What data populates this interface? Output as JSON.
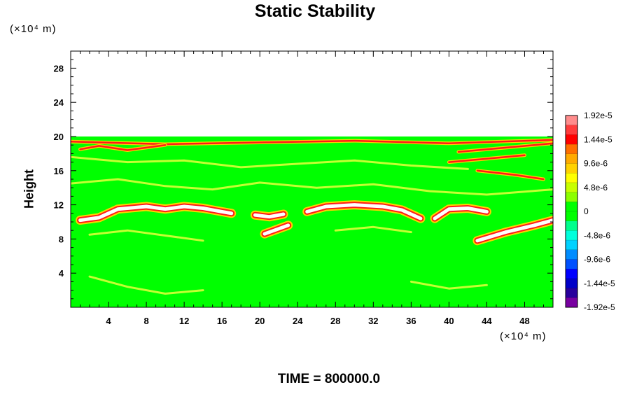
{
  "chart_data": {
    "type": "heatmap",
    "title": "Static Stability",
    "ylabel": "Height",
    "xlabel": "",
    "x_unit_label": "(×10⁴ m)",
    "y_unit_label": "(×10⁴ m)",
    "xlim": [
      0,
      51
    ],
    "ylim": [
      0,
      30
    ],
    "x_ticks": [
      "4",
      "8",
      "12",
      "16",
      "20",
      "24",
      "28",
      "32",
      "36",
      "40",
      "44",
      "48"
    ],
    "x_tick_values": [
      4,
      8,
      12,
      16,
      20,
      24,
      28,
      32,
      36,
      40,
      44,
      48
    ],
    "y_ticks": [
      "4",
      "8",
      "12",
      "16",
      "20",
      "24",
      "28"
    ],
    "y_tick_values": [
      4,
      8,
      12,
      16,
      20,
      24,
      28
    ],
    "field_top": 20,
    "colorbar": {
      "labels": [
        "1.92e-5",
        "1.44e-5",
        "9.6e-6",
        "4.8e-6",
        "0",
        "-4.8e-6",
        "-9.6e-6",
        "-1.44e-5",
        "-1.92e-5"
      ],
      "values": [
        1.92e-05,
        1.44e-05,
        9.6e-06,
        4.8e-06,
        0,
        -4.8e-06,
        -9.6e-06,
        -1.44e-05,
        -1.92e-05
      ],
      "colors": [
        "#ff8c8c",
        "#ff3c3c",
        "#ff0000",
        "#ff6e00",
        "#ffaa00",
        "#ffd200",
        "#ffff00",
        "#c8ff00",
        "#8cff00",
        "#00ff00",
        "#00ff00",
        "#00ff8c",
        "#00ffdc",
        "#00d2ff",
        "#008cff",
        "#0050ff",
        "#0000ff",
        "#0000c8",
        "#28009c",
        "#7800a0"
      ]
    },
    "features": [
      {
        "kind": "white_band",
        "points": [
          [
            1,
            10.2
          ],
          [
            3,
            10.5
          ],
          [
            5,
            11.5
          ],
          [
            8,
            11.8
          ],
          [
            10,
            11.5
          ],
          [
            12,
            11.8
          ],
          [
            14,
            11.6
          ],
          [
            16,
            11.2
          ],
          [
            17,
            11
          ]
        ]
      },
      {
        "kind": "white_band",
        "points": [
          [
            25,
            11.2
          ],
          [
            27,
            11.8
          ],
          [
            30,
            12
          ],
          [
            33,
            11.8
          ],
          [
            35,
            11.4
          ],
          [
            37,
            10.4
          ]
        ]
      },
      {
        "kind": "white_band",
        "points": [
          [
            38.5,
            10.4
          ],
          [
            40,
            11.5
          ],
          [
            42,
            11.6
          ],
          [
            44,
            11.2
          ]
        ]
      },
      {
        "kind": "white_band",
        "points": [
          [
            43,
            7.8
          ],
          [
            46,
            8.8
          ],
          [
            49,
            9.6
          ],
          [
            51,
            10.2
          ]
        ]
      },
      {
        "kind": "white_band",
        "points": [
          [
            20.5,
            8.6
          ],
          [
            22,
            9.2
          ],
          [
            23,
            9.6
          ]
        ]
      },
      {
        "kind": "white_band",
        "points": [
          [
            19.5,
            10.8
          ],
          [
            21,
            10.6
          ],
          [
            22.5,
            10.9
          ]
        ]
      },
      {
        "kind": "red_line",
        "points": [
          [
            0,
            19.4
          ],
          [
            10,
            19.1
          ],
          [
            20,
            19.3
          ],
          [
            30,
            19.5
          ],
          [
            40,
            19.2
          ],
          [
            51,
            19.6
          ]
        ]
      },
      {
        "kind": "red_line",
        "points": [
          [
            1,
            18.5
          ],
          [
            3,
            18.9
          ],
          [
            6,
            18.4
          ],
          [
            10,
            19.0
          ]
        ]
      },
      {
        "kind": "red_line",
        "points": [
          [
            41,
            18.2
          ],
          [
            45,
            18.6
          ],
          [
            49,
            19.0
          ],
          [
            51,
            19.2
          ]
        ]
      },
      {
        "kind": "red_line",
        "points": [
          [
            43,
            16.0
          ],
          [
            47,
            15.5
          ],
          [
            50,
            15.0
          ]
        ]
      },
      {
        "kind": "red_line",
        "points": [
          [
            40,
            17.0
          ],
          [
            44,
            17.4
          ],
          [
            48,
            17.8
          ]
        ]
      },
      {
        "kind": "yellow_line",
        "points": [
          [
            0,
            17.6
          ],
          [
            6,
            17.0
          ],
          [
            12,
            17.2
          ],
          [
            18,
            16.4
          ],
          [
            24,
            16.8
          ],
          [
            30,
            17.2
          ],
          [
            36,
            16.6
          ],
          [
            42,
            16.2
          ]
        ]
      },
      {
        "kind": "yellow_line",
        "points": [
          [
            0,
            14.5
          ],
          [
            5,
            15.0
          ],
          [
            10,
            14.2
          ],
          [
            15,
            13.8
          ],
          [
            20,
            14.6
          ],
          [
            26,
            14.0
          ],
          [
            32,
            14.4
          ],
          [
            38,
            13.6
          ],
          [
            44,
            13.2
          ],
          [
            51,
            13.8
          ]
        ]
      },
      {
        "kind": "yellow_line",
        "points": [
          [
            2,
            8.5
          ],
          [
            6,
            9.0
          ],
          [
            10,
            8.4
          ],
          [
            14,
            7.8
          ]
        ]
      },
      {
        "kind": "yellow_line",
        "points": [
          [
            28,
            9.0
          ],
          [
            32,
            9.4
          ],
          [
            36,
            8.8
          ]
        ]
      },
      {
        "kind": "yellow_line",
        "points": [
          [
            2,
            3.6
          ],
          [
            6,
            2.4
          ],
          [
            10,
            1.6
          ],
          [
            14,
            2.0
          ]
        ]
      },
      {
        "kind": "yellow_line",
        "points": [
          [
            36,
            3.0
          ],
          [
            40,
            2.2
          ],
          [
            44,
            2.6
          ]
        ]
      }
    ]
  },
  "time_label": "TIME = 800000.0"
}
